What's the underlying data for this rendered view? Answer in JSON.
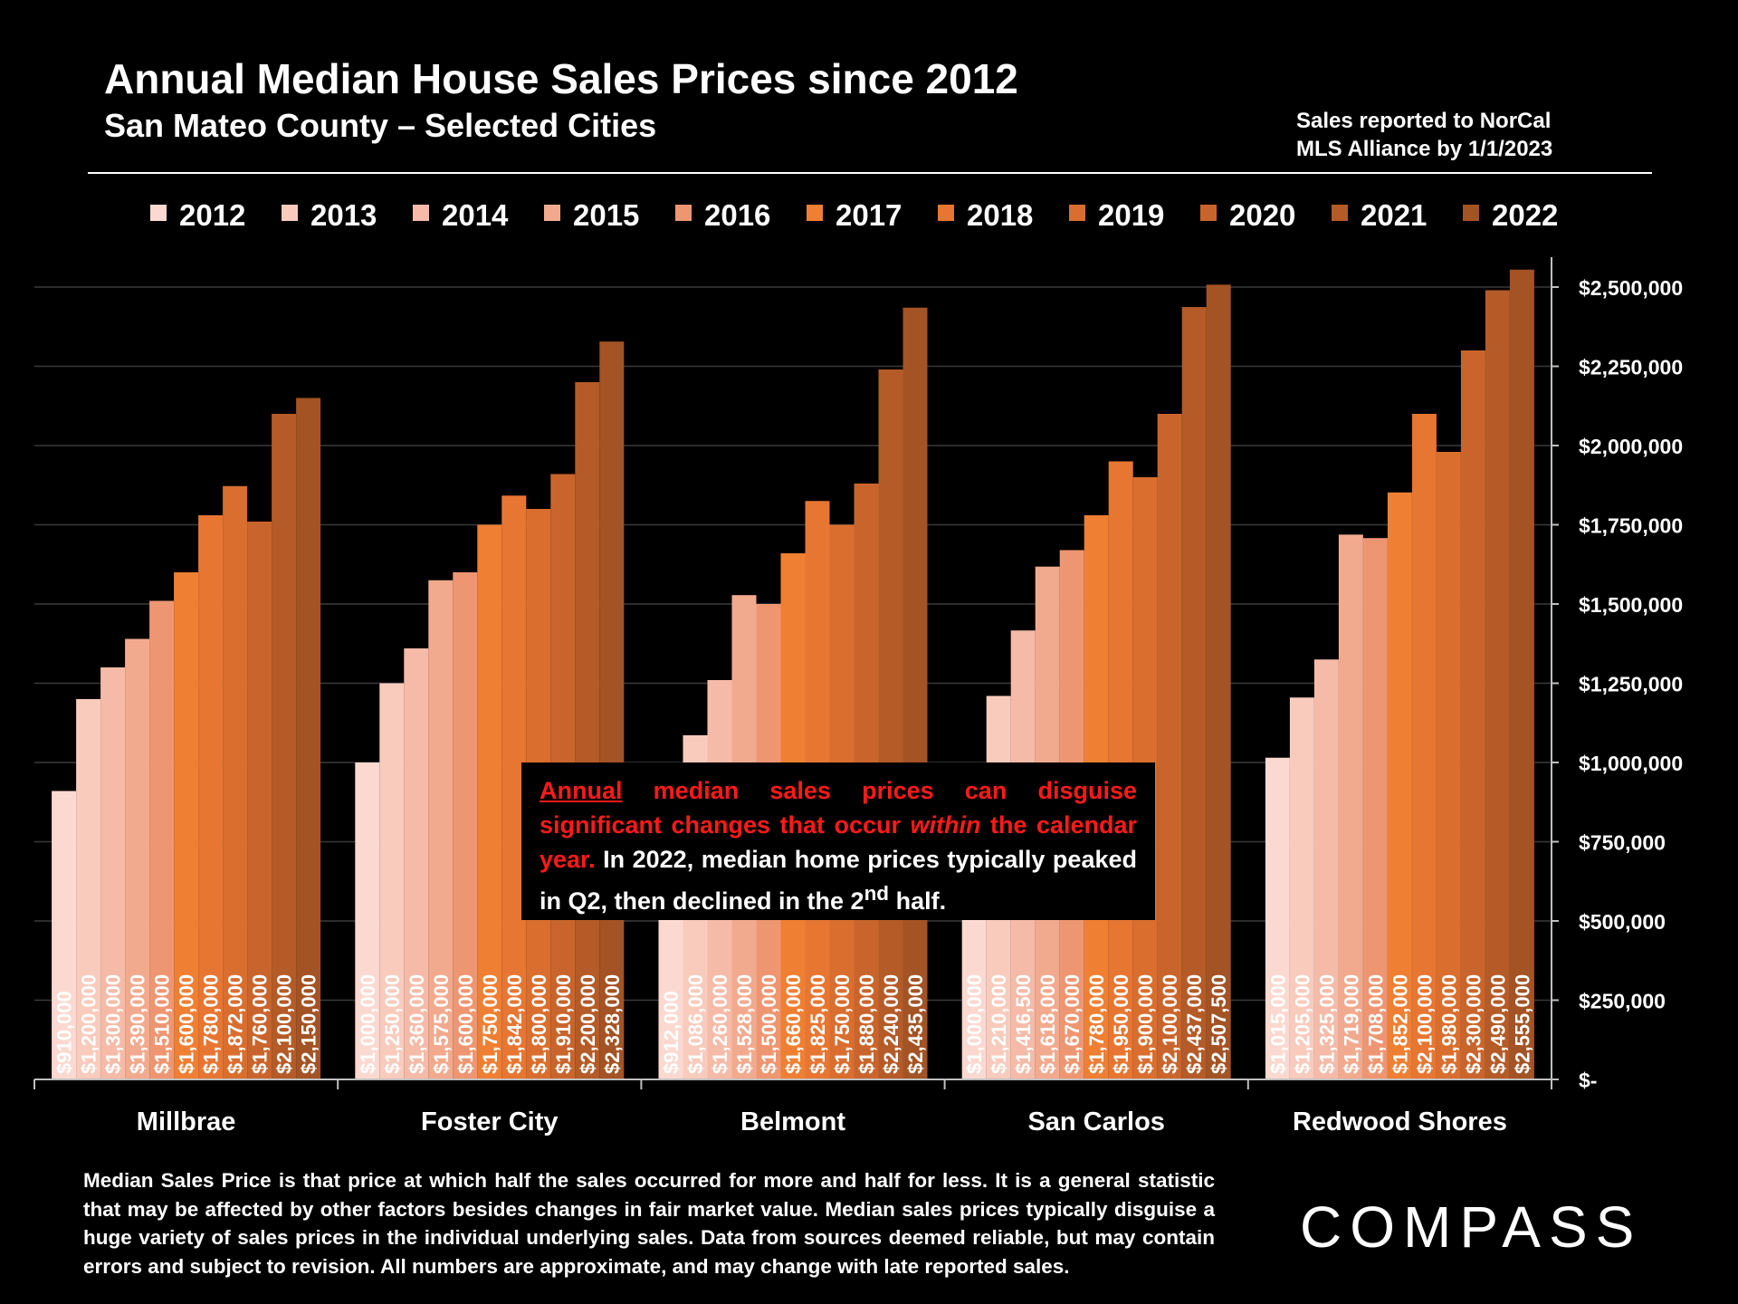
{
  "header": {
    "title": "Annual Median House Sales Prices since 2012",
    "subtitle": "San Mateo County – Selected Cities",
    "source_line1": "Sales reported to NorCal",
    "source_line2": "MLS Alliance by 1/1/2023"
  },
  "note": {
    "red_underlined": "Annual",
    "red_part1": "median sales prices can disguise significant changes that occur",
    "red_italic": "within",
    "red_part2": "the calendar year.",
    "white_part": "In 2022, median home prices typically peaked in Q2, then declined in the 2",
    "superscript": "nd",
    "white_end": "half."
  },
  "footnote": "Median Sales Price is that price at which half the sales occurred for more and half for less. It is a general statistic that may be affected by other factors besides changes in fair market value. Median sales prices typically disguise a huge variety of sales prices in the individual underlying sales. Data from sources deemed reliable, but may contain errors and subject to revision.  All numbers are approximate, and may change with late reported sales.",
  "logo": "COMPASS",
  "colors": {
    "background": "#000000",
    "note_red": "#ff1a1a",
    "series": [
      "#fbd9d0",
      "#f8cbbd",
      "#f5bba8",
      "#f2aa8f",
      "#ee9672",
      "#ef7f33",
      "#e77633",
      "#d96e2f",
      "#c9652c",
      "#b45b28",
      "#a35324"
    ]
  },
  "chart_data": {
    "type": "bar",
    "title": "Annual Median House Sales Prices since 2012",
    "subtitle": "San Mateo County – Selected Cities",
    "xlabel": "",
    "ylabel": "",
    "ylim": [
      0,
      2600000
    ],
    "y_ticks": [
      0,
      250000,
      500000,
      750000,
      1000000,
      1250000,
      1500000,
      1750000,
      2000000,
      2250000,
      2500000
    ],
    "y_tick_labels": [
      "$-",
      "$250,000",
      "$500,000",
      "$750,000",
      "$1,000,000",
      "$1,250,000",
      "$1,500,000",
      "$1,750,000",
      "$2,000,000",
      "$2,250,000",
      "$2,500,000"
    ],
    "y_axis_position": "right",
    "grid": true,
    "legend_position": "top",
    "categories": [
      "Millbrae",
      "Foster City",
      "Belmont",
      "San Carlos",
      "Redwood Shores"
    ],
    "series": [
      {
        "name": "2012",
        "values": [
          910000,
          1000000,
          912000,
          1000000,
          1015000
        ],
        "labels": [
          "$910,000",
          "$1,000,000",
          "$912,000",
          "$1,000,000",
          "$1,015,000"
        ]
      },
      {
        "name": "2013",
        "values": [
          1200000,
          1250000,
          1086000,
          1210000,
          1205000
        ],
        "labels": [
          "$1,200,000",
          "$1,250,000",
          "$1,086,000",
          "$1,210,000",
          "$1,205,000"
        ]
      },
      {
        "name": "2014",
        "values": [
          1300000,
          1360000,
          1260000,
          1416500,
          1325000
        ],
        "labels": [
          "$1,300,000",
          "$1,360,000",
          "$1,260,000",
          "$1,416,500",
          "$1,325,000"
        ]
      },
      {
        "name": "2015",
        "values": [
          1390000,
          1575000,
          1528000,
          1618000,
          1719000
        ],
        "labels": [
          "$1,390,000",
          "$1,575,000",
          "$1,528,000",
          "$1,618,000",
          "$1,719,000"
        ]
      },
      {
        "name": "2016",
        "values": [
          1510000,
          1600000,
          1500000,
          1670000,
          1708000
        ],
        "labels": [
          "$1,510,000",
          "$1,600,000",
          "$1,500,000",
          "$1,670,000",
          "$1,708,000"
        ]
      },
      {
        "name": "2017",
        "values": [
          1600000,
          1750000,
          1660000,
          1780000,
          1852000
        ],
        "labels": [
          "$1,600,000",
          "$1,750,000",
          "$1,660,000",
          "$1,780,000",
          "$1,852,000"
        ]
      },
      {
        "name": "2018",
        "values": [
          1780000,
          1842000,
          1825000,
          1950000,
          2100000
        ],
        "labels": [
          "$1,780,000",
          "$1,842,000",
          "$1,825,000",
          "$1,950,000",
          "$2,100,000"
        ]
      },
      {
        "name": "2019",
        "values": [
          1872000,
          1800000,
          1750000,
          1900000,
          1980000
        ],
        "labels": [
          "$1,872,000",
          "$1,800,000",
          "$1,750,000",
          "$1,900,000",
          "$1,980,000"
        ]
      },
      {
        "name": "2020",
        "values": [
          1760000,
          1910000,
          1880000,
          2100000,
          2300000
        ],
        "labels": [
          "$1,760,000",
          "$1,910,000",
          "$1,880,000",
          "$2,100,000",
          "$2,300,000"
        ]
      },
      {
        "name": "2021",
        "values": [
          2100000,
          2200000,
          2240000,
          2437000,
          2490000
        ],
        "labels": [
          "$2,100,000",
          "$2,200,000",
          "$2,240,000",
          "$2,437,000",
          "$2,490,000"
        ]
      },
      {
        "name": "2022",
        "values": [
          2150000,
          2328000,
          2435000,
          2507500,
          2555000
        ],
        "labels": [
          "$2,150,000",
          "$2,328,000",
          "$2,435,000",
          "$2,507,500",
          "$2,555,000"
        ]
      }
    ]
  }
}
